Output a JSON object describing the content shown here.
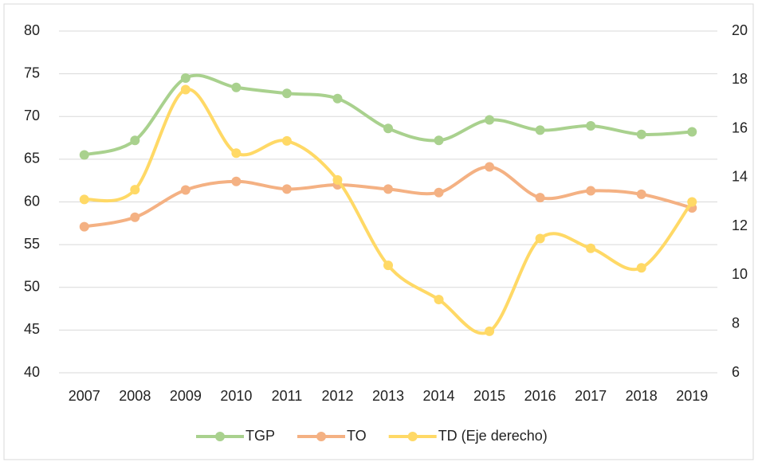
{
  "chart_data": {
    "type": "line",
    "categories": [
      "2007",
      "2008",
      "2009",
      "2010",
      "2011",
      "2012",
      "2013",
      "2014",
      "2015",
      "2016",
      "2017",
      "2018",
      "2019"
    ],
    "series": [
      {
        "name": "TGP",
        "color": "#a9d18e",
        "values": [
          65.5,
          67.2,
          74.5,
          73.4,
          72.7,
          72.1,
          68.6,
          67.2,
          69.6,
          68.4,
          68.9,
          67.9,
          68.2
        ]
      },
      {
        "name": "TO",
        "color": "#f4b183",
        "values": [
          57.1,
          58.2,
          61.4,
          62.4,
          61.5,
          62.0,
          61.5,
          61.1,
          64.1,
          60.5,
          61.3,
          60.9,
          59.3
        ]
      },
      {
        "name": "TD (Eje derecho)",
        "color": "#ffd966",
        "axis": "y2",
        "values": [
          13.1,
          13.5,
          17.6,
          15.0,
          15.5,
          13.9,
          10.4,
          9.0,
          7.7,
          11.5,
          11.1,
          10.3,
          13.0
        ]
      }
    ],
    "ylim": [
      40,
      80
    ],
    "yticks": [
      40,
      45,
      50,
      55,
      60,
      65,
      70,
      75,
      80
    ],
    "y2lim": [
      6,
      20
    ],
    "y2ticks": [
      6,
      8,
      10,
      12,
      14,
      16,
      18,
      20
    ],
    "grid": true,
    "smooth": true,
    "legend": "bottom"
  }
}
